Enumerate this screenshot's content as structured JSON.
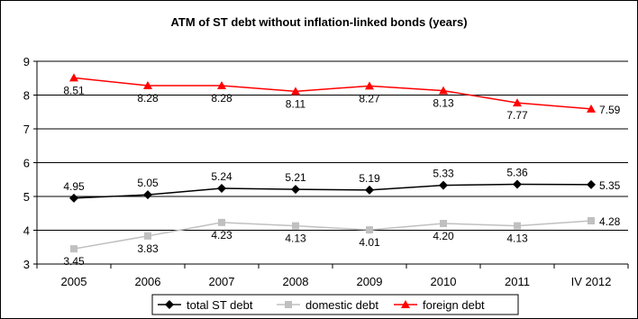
{
  "chart_data": {
    "type": "line",
    "title": "ATM of ST debt without inflation-linked bonds (years)",
    "categories": [
      "2005",
      "2006",
      "2007",
      "2008",
      "2009",
      "2010",
      "2011",
      "IV 2012"
    ],
    "ylim": [
      3,
      9
    ],
    "yticks": [
      3,
      4,
      5,
      6,
      7,
      8,
      9
    ],
    "grid": "horizontal",
    "legend_position": "bottom",
    "series": [
      {
        "name": "total ST debt",
        "color": "#000000",
        "marker": "diamond",
        "values": [
          4.95,
          5.05,
          5.24,
          5.21,
          5.19,
          5.33,
          5.36,
          5.35
        ],
        "labels": [
          "4.95",
          "5.05",
          "5.24",
          "5.21",
          "5.19",
          "5.33",
          "5.36",
          "5.35"
        ]
      },
      {
        "name": "domestic debt",
        "color": "#c0c0c0",
        "marker": "square",
        "values": [
          3.45,
          3.83,
          4.23,
          4.13,
          4.01,
          4.2,
          4.13,
          4.28
        ],
        "labels": [
          "3.45",
          "3.83",
          "4.23",
          "4.13",
          "4.01",
          "4.20",
          "4.13",
          "4.28"
        ]
      },
      {
        "name": "foreign debt",
        "color": "#ff0000",
        "marker": "triangle",
        "values": [
          8.51,
          8.28,
          8.28,
          8.11,
          8.27,
          8.13,
          7.77,
          7.59
        ],
        "labels": [
          "8.51",
          "8.28",
          "8.28",
          "8.11",
          "8.27",
          "8.13",
          "7.77",
          "7.59"
        ]
      }
    ]
  }
}
